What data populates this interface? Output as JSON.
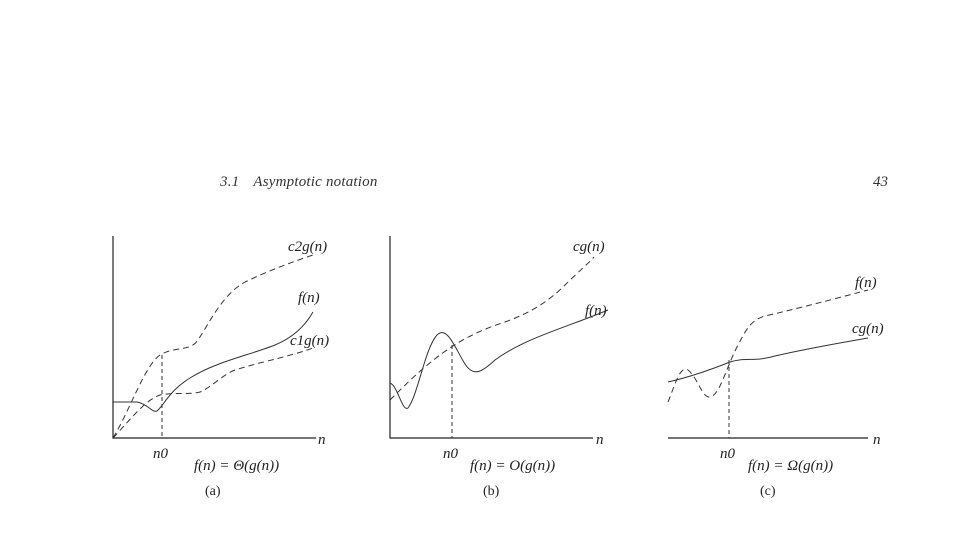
{
  "header": {
    "section_number": "3.1",
    "section_title": "Asymptotic notation",
    "page_number": "43"
  },
  "panels": [
    {
      "id": "a",
      "curves": [
        "c2g(n)",
        "f(n)",
        "c1g(n)"
      ],
      "x_axis_label": "n",
      "threshold_label": "n0",
      "relation": "f(n) = Θ(g(n))",
      "caption": "(a)"
    },
    {
      "id": "b",
      "curves": [
        "cg(n)",
        "f(n)"
      ],
      "x_axis_label": "n",
      "threshold_label": "n0",
      "relation": "f(n) = O(g(n))",
      "caption": "(b)"
    },
    {
      "id": "c",
      "curves": [
        "f(n)",
        "cg(n)"
      ],
      "x_axis_label": "n",
      "threshold_label": "n0",
      "relation": "f(n) = Ω(g(n))",
      "caption": "(c)"
    }
  ]
}
